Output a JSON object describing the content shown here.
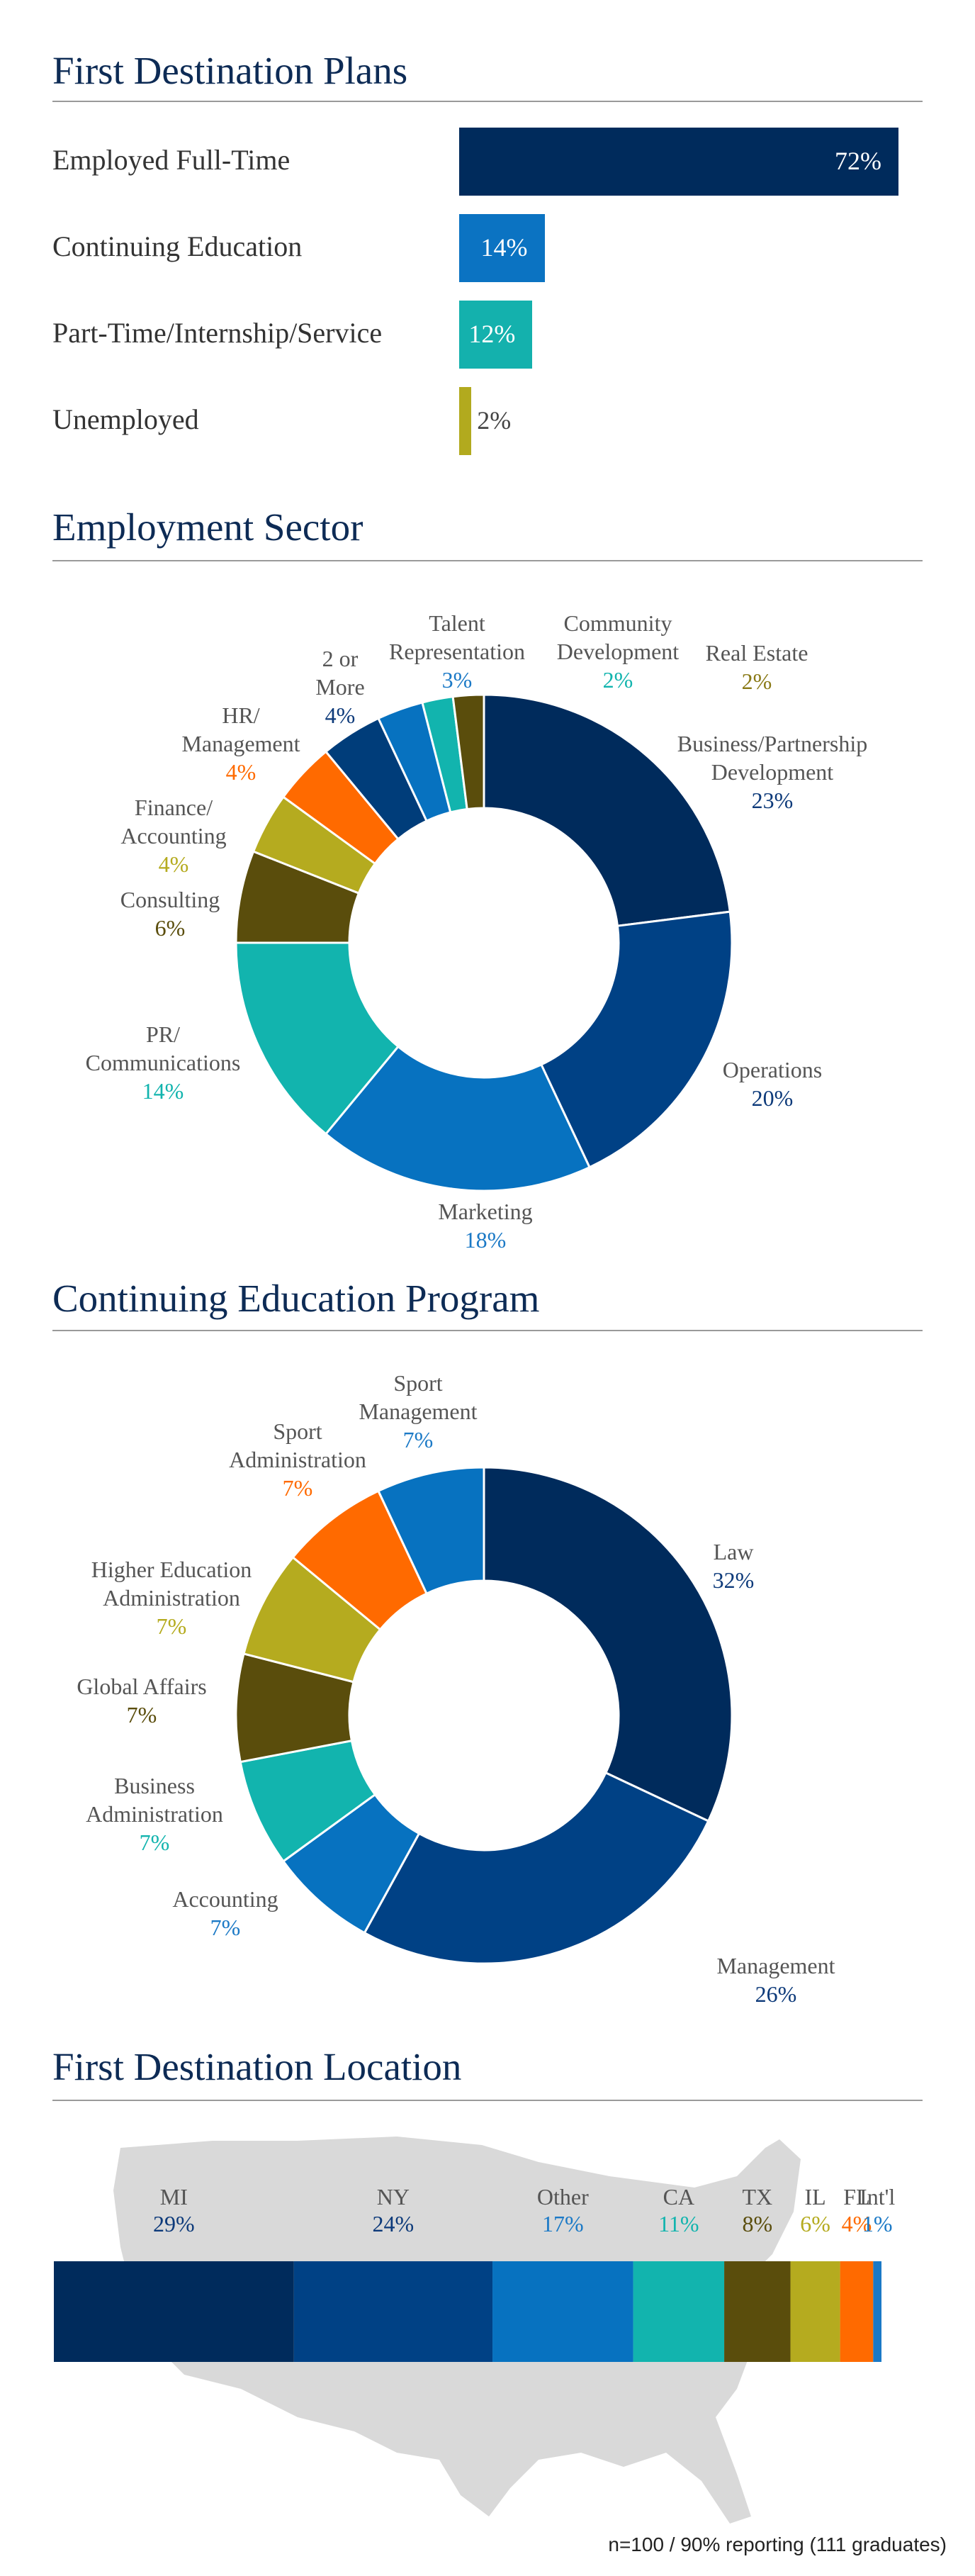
{
  "sections": {
    "plans_title": "First Destination Plans",
    "sector_title": "Employment Sector",
    "education_title": "Continuing Education Program",
    "location_title": "First Destination Location"
  },
  "footnote": "n=100 / 90% reporting (111 graduates)",
  "chart_data": [
    {
      "type": "bar",
      "orientation": "horizontal",
      "title": "First Destination Plans",
      "categories": [
        "Employed Full-Time",
        "Continuing Education",
        "Part-Time/Internship/Service",
        "Unemployed"
      ],
      "values": [
        72,
        14,
        12,
        2
      ],
      "value_labels": [
        "72%",
        "14%",
        "12%",
        "2%"
      ],
      "colors": [
        "#002b5c",
        "#0b73c2",
        "#14b1ad",
        "#b2aa1e"
      ],
      "xlim": [
        0,
        72
      ]
    },
    {
      "type": "pie",
      "donut": true,
      "title": "Employment Sector",
      "slices": [
        {
          "label": [
            "Business/Partnership",
            "Development"
          ],
          "value": 23,
          "value_label": "23%",
          "color": "#002b5c",
          "label_color": "#0d3a7a"
        },
        {
          "label": [
            "Operations"
          ],
          "value": 20,
          "value_label": "20%",
          "color": "#004185",
          "label_color": "#0d3a7a"
        },
        {
          "label": [
            "Marketing"
          ],
          "value": 18,
          "value_label": "18%",
          "color": "#0772c0",
          "label_color": "#1b79c6"
        },
        {
          "label": [
            "PR/",
            "Communications"
          ],
          "value": 14,
          "value_label": "14%",
          "color": "#12b4ae",
          "label_color": "#12b4ae"
        },
        {
          "label": [
            "Consulting"
          ],
          "value": 6,
          "value_label": "6%",
          "color": "#5a4d0c",
          "label_color": "#5a4d0c"
        },
        {
          "label": [
            "Finance/",
            "Accounting"
          ],
          "value": 4,
          "value_label": "4%",
          "color": "#b5ab1f",
          "label_color": "#b5ab1f"
        },
        {
          "label": [
            "HR/",
            "Management"
          ],
          "value": 4,
          "value_label": "4%",
          "color": "#ff6a00",
          "label_color": "#ff6a00"
        },
        {
          "label": [
            "2 or",
            "More"
          ],
          "value": 4,
          "value_label": "4%",
          "color": "#003d7a",
          "label_color": "#0d3a7a"
        },
        {
          "label": [
            "Talent",
            "Representation"
          ],
          "value": 3,
          "value_label": "3%",
          "color": "#0772c0",
          "label_color": "#1b79c6"
        },
        {
          "label": [
            "Community",
            "Development"
          ],
          "value": 2,
          "value_label": "2%",
          "color": "#12b4ae",
          "label_color": "#12b4ae"
        },
        {
          "label": [
            "Real Estate"
          ],
          "value": 2,
          "value_label": "2%",
          "color": "#5a4d0c",
          "label_color": "#8a7a17"
        }
      ]
    },
    {
      "type": "pie",
      "donut": true,
      "title": "Continuing Education Program",
      "slices": [
        {
          "label": [
            "Law"
          ],
          "value": 32,
          "value_label": "32%",
          "color": "#002b5c",
          "label_color": "#0d3a7a"
        },
        {
          "label": [
            "Management"
          ],
          "value": 26,
          "value_label": "26%",
          "color": "#004185",
          "label_color": "#0d3a7a"
        },
        {
          "label": [
            "Accounting"
          ],
          "value": 7,
          "value_label": "7%",
          "color": "#0772c0",
          "label_color": "#1b79c6"
        },
        {
          "label": [
            "Business",
            "Administration"
          ],
          "value": 7,
          "value_label": "7%",
          "color": "#12b4ae",
          "label_color": "#12b4ae"
        },
        {
          "label": [
            "Global Affairs"
          ],
          "value": 7,
          "value_label": "7%",
          "color": "#5a4d0c",
          "label_color": "#5a4d0c"
        },
        {
          "label": [
            "Higher Education",
            "Administration"
          ],
          "value": 7,
          "value_label": "7%",
          "color": "#b5ab1f",
          "label_color": "#b5ab1f"
        },
        {
          "label": [
            "Sport",
            "Administration"
          ],
          "value": 7,
          "value_label": "7%",
          "color": "#ff6a00",
          "label_color": "#ff6a00"
        },
        {
          "label": [
            "Sport",
            "Management"
          ],
          "value": 7,
          "value_label": "7%",
          "color": "#0772c0",
          "label_color": "#1b79c6"
        }
      ]
    },
    {
      "type": "bar",
      "orientation": "stacked-horizontal",
      "title": "First Destination Location",
      "segments": [
        {
          "label": "MI",
          "value": 29,
          "value_label": "29%",
          "color": "#002b5c",
          "label_color": "#0d3a7a"
        },
        {
          "label": "NY",
          "value": 24,
          "value_label": "24%",
          "color": "#004185",
          "label_color": "#0d3a7a"
        },
        {
          "label": "Other",
          "value": 17,
          "value_label": "17%",
          "color": "#0772c0",
          "label_color": "#1b79c6"
        },
        {
          "label": "CA",
          "value": 11,
          "value_label": "11%",
          "color": "#12b4ae",
          "label_color": "#12b4ae"
        },
        {
          "label": "TX",
          "value": 8,
          "value_label": "8%",
          "color": "#5a4d0c",
          "label_color": "#5a4d0c"
        },
        {
          "label": "IL",
          "value": 6,
          "value_label": "6%",
          "color": "#b5ab1f",
          "label_color": "#b5ab1f"
        },
        {
          "label": "FL",
          "value": 4,
          "value_label": "4%",
          "color": "#ff6a00",
          "label_color": "#ff6a00"
        },
        {
          "label": "Int'l",
          "value": 1,
          "value_label": "1%",
          "color": "#1b79c6",
          "label_color": "#1b79c6"
        }
      ]
    }
  ]
}
